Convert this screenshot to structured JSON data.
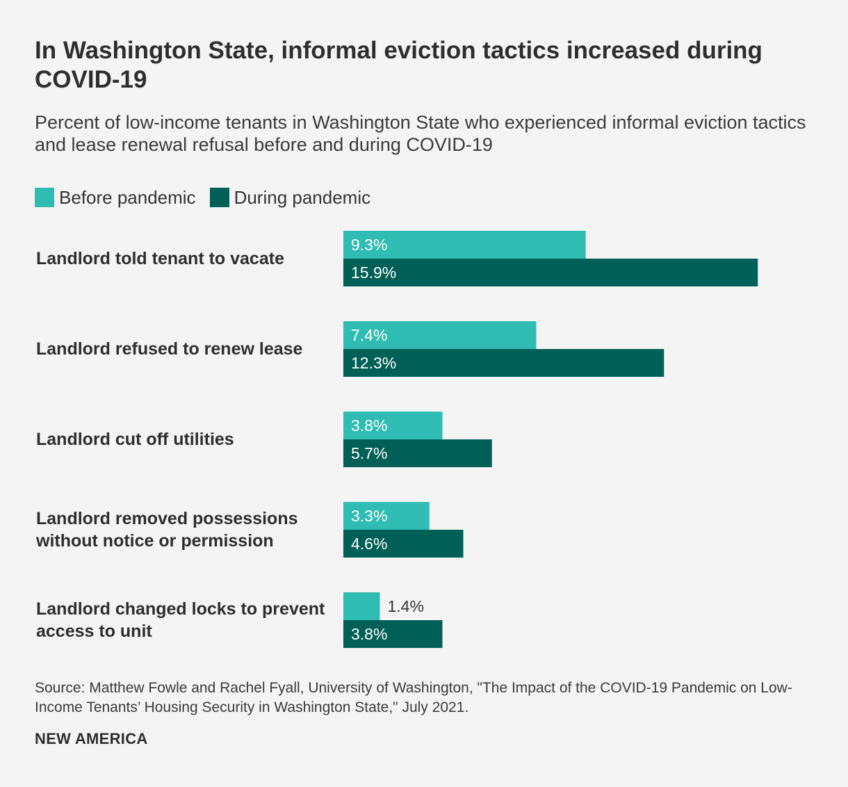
{
  "title": "In Washington State, informal eviction tactics increased during COVID-19",
  "subtitle": "Percent of low-income tenants in Washington State who experienced informal eviction tactics and lease renewal refusal before and during COVID-19",
  "legend": {
    "before": "Before pandemic",
    "during": "During pandemic"
  },
  "colors": {
    "before": "#2ebcb3",
    "during": "#005f56",
    "label_inside": "#ffffff",
    "label_outside": "#333333"
  },
  "chart_data": {
    "type": "bar",
    "orientation": "horizontal",
    "title": "In Washington State, informal eviction tactics increased during COVID-19",
    "subtitle": "Percent of low-income tenants in Washington State who experienced informal eviction tactics and lease renewal refusal before and during COVID-19",
    "categories": [
      "Landlord told tenant to vacate",
      "Landlord refused to renew lease",
      "Landlord cut off utilities",
      "Landlord removed possessions without notice or permission",
      "Landlord changed locks to prevent access to unit"
    ],
    "series": [
      {
        "name": "Before pandemic",
        "values": [
          9.3,
          7.4,
          3.8,
          3.3,
          1.4
        ],
        "labels": [
          "9.3%",
          "7.4%",
          "3.8%",
          "3.3%",
          "1.4%"
        ]
      },
      {
        "name": "During pandemic",
        "values": [
          15.9,
          12.3,
          5.7,
          4.6,
          3.8
        ],
        "labels": [
          "15.9%",
          "12.3%",
          "5.7%",
          "4.6%",
          "3.8%"
        ]
      }
    ],
    "xlim": [
      0,
      16
    ],
    "unit": "%",
    "legend_position": "top-left",
    "grid": false
  },
  "source": "Source: Matthew Fowle and Rachel Fyall, University of Washington, \"The Impact of the COVID-19 Pandemic on Low-Income Tenants’ Housing Security in Washington State,\" July 2021.",
  "brand": "NEW AMERICA"
}
